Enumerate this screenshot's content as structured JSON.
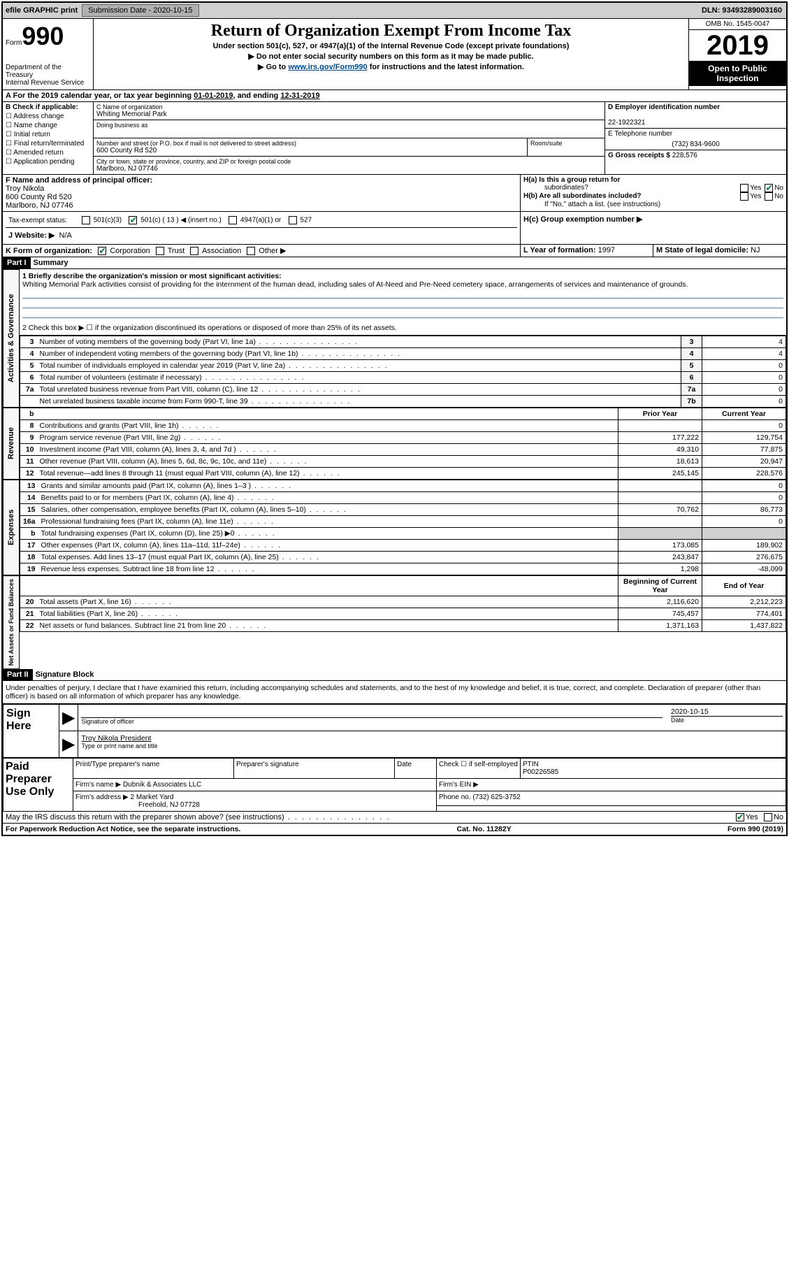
{
  "topbar": {
    "efile": "efile GRAPHIC print",
    "subdate_label": "Submission Date -",
    "subdate": "2020-10-15",
    "dln_label": "DLN:",
    "dln": "93493289003160"
  },
  "header": {
    "form_word": "Form",
    "form_num": "990",
    "dept1": "Department of the Treasury",
    "dept2": "Internal Revenue Service",
    "title": "Return of Organization Exempt From Income Tax",
    "sub1": "Under section 501(c), 527, or 4947(a)(1) of the Internal Revenue Code (except private foundations)",
    "sub2": "▶ Do not enter social security numbers on this form as it may be made public.",
    "sub3_pre": "▶ Go to ",
    "sub3_link": "www.irs.gov/Form990",
    "sub3_post": " for instructions and the latest information.",
    "omb": "OMB No. 1545-0047",
    "year": "2019",
    "inspect1": "Open to Public",
    "inspect2": "Inspection"
  },
  "A": {
    "text_pre": "A For the 2019 calendar year, or tax year beginning ",
    "begin": "01-01-2019",
    "text_mid": ", and ending ",
    "end": "12-31-2019"
  },
  "B": {
    "label": "B Check if applicable:",
    "opts": [
      "Address change",
      "Name change",
      "Initial return",
      "Final return/terminated",
      "Amended return",
      "Application pending"
    ]
  },
  "C": {
    "name_lbl": "C Name of organization",
    "name": "Whiting Memorial Park",
    "dba_lbl": "Doing business as",
    "dba": "",
    "street_lbl": "Number and street (or P.O. box if mail is not delivered to street address)",
    "street": "600 County Rd 520",
    "room_lbl": "Room/suite",
    "city_lbl": "City or town, state or province, country, and ZIP or foreign postal code",
    "city": "Marlboro, NJ  07746"
  },
  "D": {
    "lbl": "D Employer identification number",
    "val": "22-1922321"
  },
  "E": {
    "lbl": "E Telephone number",
    "val": "(732) 834-9600"
  },
  "G": {
    "lbl": "G Gross receipts $",
    "val": "228,576"
  },
  "F": {
    "lbl": "F  Name and address of principal officer:",
    "name": "Troy Nikola",
    "addr1": "600 County Rd 520",
    "addr2": "Marlboro, NJ  07746"
  },
  "H": {
    "a_lbl": "H(a)  Is this a group return for",
    "a_lbl2": "subordinates?",
    "b_lbl": "H(b)  Are all subordinates included?",
    "note": "If \"No,\" attach a list. (see instructions)",
    "c_lbl": "H(c)  Group exemption number ▶",
    "yes": "Yes",
    "no": "No"
  },
  "I": {
    "lbl": "Tax-exempt status:",
    "o1": "501(c)(3)",
    "o2": "501(c) ( 13 ) ◀ (insert no.)",
    "o3": "4947(a)(1) or",
    "o4": "527"
  },
  "J": {
    "lbl": "J   Website: ▶",
    "val": "N/A"
  },
  "K": {
    "lbl": "K Form of organization:",
    "o1": "Corporation",
    "o2": "Trust",
    "o3": "Association",
    "o4": "Other ▶"
  },
  "L": {
    "lbl": "L Year of formation:",
    "val": "1997"
  },
  "M": {
    "lbl": "M State of legal domicile:",
    "val": "NJ"
  },
  "part1": {
    "hdr": "Part I",
    "title": "Summary"
  },
  "mission": {
    "q1": "1  Briefly describe the organization's mission or most significant activities:",
    "text": "Whiting Memorial Park activities consist of providing for the internment of the human dead, including sales of At-Need and Pre-Need cemetery space, arrangements of services and maintenance of grounds.",
    "q2": "2   Check this box ▶ ☐  if the organization discontinued its operations or disposed of more than 25% of its net assets."
  },
  "gov_rows": [
    {
      "n": "3",
      "d": "Number of voting members of the governing body (Part VI, line 1a)",
      "box": "3",
      "v": "4"
    },
    {
      "n": "4",
      "d": "Number of independent voting members of the governing body (Part VI, line 1b)",
      "box": "4",
      "v": "4"
    },
    {
      "n": "5",
      "d": "Total number of individuals employed in calendar year 2019 (Part V, line 2a)",
      "box": "5",
      "v": "0"
    },
    {
      "n": "6",
      "d": "Total number of volunteers (estimate if necessary)",
      "box": "6",
      "v": "0"
    },
    {
      "n": "7a",
      "d": "Total unrelated business revenue from Part VIII, column (C), line 12",
      "box": "7a",
      "v": "0"
    },
    {
      "n": "",
      "d": "Net unrelated business taxable income from Form 990-T, line 39",
      "box": "7b",
      "v": "0"
    }
  ],
  "col_headers": {
    "prior": "Prior Year",
    "current": "Current Year"
  },
  "revenue": [
    {
      "n": "8",
      "d": "Contributions and grants (Part VIII, line 1h)",
      "p": "",
      "c": "0"
    },
    {
      "n": "9",
      "d": "Program service revenue (Part VIII, line 2g)",
      "p": "177,222",
      "c": "129,754"
    },
    {
      "n": "10",
      "d": "Investment income (Part VIII, column (A), lines 3, 4, and 7d )",
      "p": "49,310",
      "c": "77,875"
    },
    {
      "n": "11",
      "d": "Other revenue (Part VIII, column (A), lines 5, 6d, 8c, 9c, 10c, and 11e)",
      "p": "18,613",
      "c": "20,947"
    },
    {
      "n": "12",
      "d": "Total revenue—add lines 8 through 11 (must equal Part VIII, column (A), line 12)",
      "p": "245,145",
      "c": "228,576"
    }
  ],
  "expenses": [
    {
      "n": "13",
      "d": "Grants and similar amounts paid (Part IX, column (A), lines 1–3 )",
      "p": "",
      "c": "0"
    },
    {
      "n": "14",
      "d": "Benefits paid to or for members (Part IX, column (A), line 4)",
      "p": "",
      "c": "0"
    },
    {
      "n": "15",
      "d": "Salaries, other compensation, employee benefits (Part IX, column (A), lines 5–10)",
      "p": "70,762",
      "c": "86,773"
    },
    {
      "n": "16a",
      "d": "Professional fundraising fees (Part IX, column (A), line 11e)",
      "p": "",
      "c": "0"
    },
    {
      "n": "b",
      "d": "Total fundraising expenses (Part IX, column (D), line 25) ▶0",
      "p": "GRAY",
      "c": "GRAY"
    },
    {
      "n": "17",
      "d": "Other expenses (Part IX, column (A), lines 11a–11d, 11f–24e)",
      "p": "173,085",
      "c": "189,902"
    },
    {
      "n": "18",
      "d": "Total expenses. Add lines 13–17 (must equal Part IX, column (A), line 25)",
      "p": "243,847",
      "c": "276,675"
    },
    {
      "n": "19",
      "d": "Revenue less expenses. Subtract line 18 from line 12",
      "p": "1,298",
      "c": "-48,099"
    }
  ],
  "net_headers": {
    "begin": "Beginning of Current Year",
    "end": "End of Year"
  },
  "netassets": [
    {
      "n": "20",
      "d": "Total assets (Part X, line 16)",
      "p": "2,116,620",
      "c": "2,212,223"
    },
    {
      "n": "21",
      "d": "Total liabilities (Part X, line 26)",
      "p": "745,457",
      "c": "774,401"
    },
    {
      "n": "22",
      "d": "Net assets or fund balances. Subtract line 21 from line 20",
      "p": "1,371,163",
      "c": "1,437,822"
    }
  ],
  "side_labels": {
    "gov": "Activities & Governance",
    "rev": "Revenue",
    "exp": "Expenses",
    "net": "Net Assets or Fund Balances"
  },
  "part2": {
    "hdr": "Part II",
    "title": "Signature Block"
  },
  "penalty": "Under penalties of perjury, I declare that I have examined this return, including accompanying schedules and statements, and to the best of my knowledge and belief, it is true, correct, and complete. Declaration of preparer (other than officer) is based on all information of which preparer has any knowledge.",
  "sign": {
    "here": "Sign Here",
    "sig_lbl": "Signature of officer",
    "date_lbl": "Date",
    "date": "2020-10-15",
    "name": "Troy Nikola  President",
    "name_lbl": "Type or print name and title"
  },
  "preparer": {
    "title": "Paid Preparer Use Only",
    "name_lbl": "Print/Type preparer's name",
    "sig_lbl": "Preparer's signature",
    "date_lbl": "Date",
    "check_lbl": "Check ☐ if self-employed",
    "ptin_lbl": "PTIN",
    "ptin": "P00226585",
    "firm_lbl": "Firm's name    ▶",
    "firm": "Dubnik & Associates LLC",
    "ein_lbl": "Firm's EIN ▶",
    "addr_lbl": "Firm's address ▶",
    "addr1": "2 Market Yard",
    "addr2": "Freehold, NJ  07728",
    "phone_lbl": "Phone no.",
    "phone": "(732) 625-3752"
  },
  "discuss": {
    "q": "May the IRS discuss this return with the preparer shown above? (see instructions)",
    "yes": "Yes",
    "no": "No"
  },
  "footer": {
    "left": "For Paperwork Reduction Act Notice, see the separate instructions.",
    "mid": "Cat. No. 11282Y",
    "right": "Form 990 (2019)"
  }
}
